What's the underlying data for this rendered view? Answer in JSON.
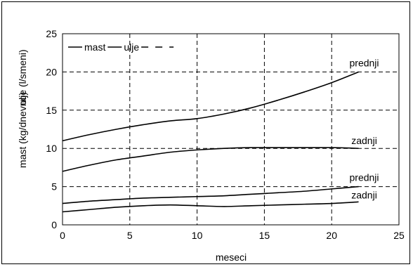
{
  "chart_data": {
    "type": "line",
    "xlabel": "meseci",
    "ylabel_outer": "mast (kg/dnevno)",
    "ylabel_inner": "ulje (l/smeni)",
    "xlim": [
      0,
      25
    ],
    "ylim": [
      0,
      25
    ],
    "xticks": [
      "0",
      "5",
      "10",
      "15",
      "20",
      "25"
    ],
    "yticks": [
      "0",
      "5",
      "10",
      "15",
      "20",
      "25"
    ],
    "grid": true,
    "grid_style": "dashed",
    "legend": {
      "placement": "top-left",
      "entries": [
        {
          "label": "mast",
          "style": "solid"
        },
        {
          "label": "ulje",
          "style": "solid"
        },
        {
          "label": "",
          "style": "dashed"
        }
      ]
    },
    "series": [
      {
        "label": "prednji",
        "points": [
          [
            0,
            11
          ],
          [
            2,
            11.8
          ],
          [
            4,
            12.5
          ],
          [
            6,
            13.1
          ],
          [
            8,
            13.6
          ],
          [
            10,
            13.9
          ],
          [
            12,
            14.5
          ],
          [
            14,
            15.3
          ],
          [
            16,
            16.3
          ],
          [
            18,
            17.4
          ],
          [
            20,
            18.6
          ],
          [
            22,
            20
          ]
        ]
      },
      {
        "label": "zadnji",
        "points": [
          [
            0,
            7
          ],
          [
            2,
            7.8
          ],
          [
            4,
            8.5
          ],
          [
            6,
            9.0
          ],
          [
            8,
            9.5
          ],
          [
            10,
            9.8
          ],
          [
            12,
            10.0
          ],
          [
            14,
            10.1
          ],
          [
            16,
            10.1
          ],
          [
            18,
            10.1
          ],
          [
            20,
            10.1
          ],
          [
            22,
            10
          ]
        ]
      },
      {
        "label": "prednji",
        "points": [
          [
            0,
            2.8
          ],
          [
            2,
            3.1
          ],
          [
            4,
            3.3
          ],
          [
            6,
            3.5
          ],
          [
            8,
            3.6
          ],
          [
            10,
            3.7
          ],
          [
            12,
            3.8
          ],
          [
            14,
            4.0
          ],
          [
            16,
            4.2
          ],
          [
            18,
            4.4
          ],
          [
            20,
            4.7
          ],
          [
            22,
            5
          ]
        ]
      },
      {
        "label": "zadnji",
        "points": [
          [
            0,
            1.7
          ],
          [
            2,
            2.0
          ],
          [
            4,
            2.3
          ],
          [
            6,
            2.5
          ],
          [
            8,
            2.6
          ],
          [
            10,
            2.5
          ],
          [
            12,
            2.4
          ],
          [
            14,
            2.5
          ],
          [
            16,
            2.6
          ],
          [
            18,
            2.7
          ],
          [
            20,
            2.8
          ],
          [
            22,
            3
          ]
        ]
      }
    ]
  }
}
